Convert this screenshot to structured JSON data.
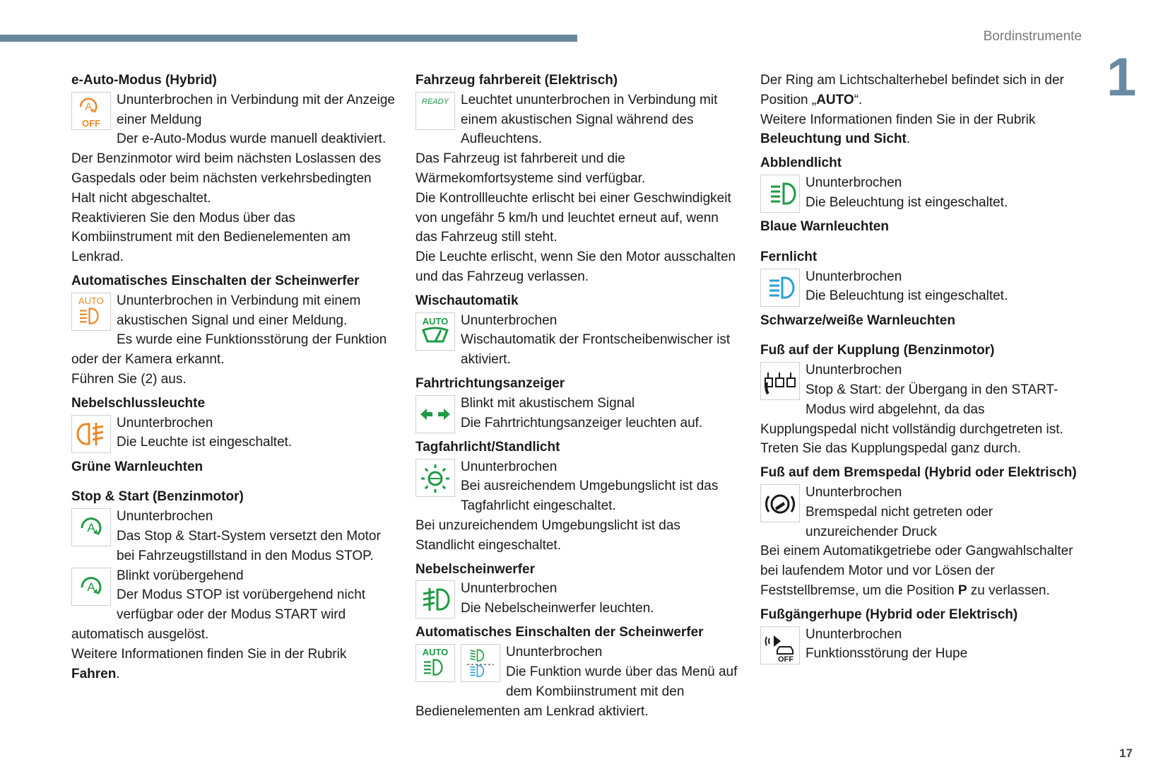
{
  "header": {
    "section_title": "Bordinstrumente",
    "chapter_number": "1",
    "page_number": "17",
    "bar_color": "#6a889c"
  },
  "colors": {
    "orange": "#e8892b",
    "green": "#1e9a45",
    "blue": "#2a9fd6",
    "black": "#1a1a1a"
  },
  "columns": [
    {
      "blocks": [
        {
          "h": "e-Auto-Modus (Hybrid)"
        },
        {
          "icons": [
            "auto-off-icon"
          ],
          "p": [
            "Ununterbrochen in Verbindung mit der Anzeige einer Meldung",
            "Der e-Auto-Modus wurde manuell deaktiviert.",
            "Der Benzinmotor wird beim nächsten Loslassen des Gaspedals oder beim nächsten verkehrsbedingten Halt nicht abgeschaltet.",
            "Reaktivieren Sie den Modus über das Kombiinstrument mit den Bedienelementen am Lenkrad."
          ]
        },
        {
          "h": "Automatisches Einschalten der Scheinwerfer"
        },
        {
          "icons": [
            "auto-headlamp-orange-icon"
          ],
          "p": [
            "Ununterbrochen in Verbindung mit einem akustischen Signal und einer Meldung.",
            "Es wurde eine Funktionsstörung der Funktion oder der Kamera erkannt.",
            "Führen Sie (2) aus."
          ]
        },
        {
          "h": "Nebelschlussleuchte"
        },
        {
          "icons": [
            "rear-fog-lamp-icon"
          ],
          "p": [
            "Ununterbrochen",
            "Die Leuchte ist eingeschaltet."
          ]
        },
        {
          "h": "Grüne Warnleuchten",
          "gap": true
        },
        {
          "h": "Stop & Start (Benzinmotor)"
        },
        {
          "icons": [
            "stop-start-icon"
          ],
          "p": [
            "Ununterbrochen",
            "Das Stop & Start-System versetzt den Motor bei Fahrzeugstillstand in den Modus STOP."
          ]
        },
        {
          "icons": [
            "stop-start-icon"
          ],
          "p": [
            "Blinkt vorübergehend",
            "Der Modus STOP ist vorübergehend nicht verfügbar oder der Modus START wird automatisch ausgelöst.",
            [
              {
                "t": "Weitere Informationen finden Sie in der Rubrik "
              },
              {
                "t": "Fahren",
                "b": true
              },
              {
                "t": "."
              }
            ]
          ]
        }
      ]
    },
    {
      "blocks": [
        {
          "h": "Fahrzeug fahrbereit (Elektrisch)"
        },
        {
          "icons": [
            "ready-icon"
          ],
          "p": [
            "Leuchtet ununterbrochen in Verbindung mit einem akustischen Signal während des Aufleuchtens.",
            "Das Fahrzeug ist fahrbereit und die Wärmekomfortsysteme sind verfügbar.",
            "Die Kontrollleuchte erlischt bei einer Geschwindigkeit von ungefähr 5 km/h und leuchtet erneut auf, wenn das Fahrzeug still steht.",
            "Die Leuchte erlischt, wenn Sie den Motor ausschalten und das Fahrzeug verlassen."
          ]
        },
        {
          "h": "Wischautomatik"
        },
        {
          "icons": [
            "auto-wiper-icon"
          ],
          "p": [
            "Ununterbrochen",
            "Wischautomatik der Frontscheibenwischer ist aktiviert."
          ]
        },
        {
          "h": "Fahrtrichtungsanzeiger"
        },
        {
          "icons": [
            "turn-signal-icon"
          ],
          "p": [
            "Blinkt mit akustischem Signal",
            "Die Fahrtrichtungsanzeiger leuchten auf."
          ]
        },
        {
          "h": "Tagfahrlicht/Standlicht"
        },
        {
          "icons": [
            "daytime-light-icon"
          ],
          "p": [
            "Ununterbrochen",
            "Bei ausreichendem Umgebungslicht ist das Tagfahrlicht eingeschaltet.",
            "Bei unzureichendem Umgebungslicht ist das Standlicht eingeschaltet."
          ]
        },
        {
          "h": "Nebelscheinwerfer"
        },
        {
          "icons": [
            "front-fog-lamp-icon"
          ],
          "p": [
            "Ununterbrochen",
            "Die Nebelscheinwerfer leuchten."
          ]
        },
        {
          "h": "Automatisches Einschalten der Scheinwerfer"
        },
        {
          "icons": [
            "auto-headlamp-green-icon",
            "auto-high-beam-icon"
          ],
          "p": [
            "Ununterbrochen",
            "Die Funktion wurde über das Menü auf dem Kombiinstrument mit den Bedienelementen am Lenkrad aktiviert."
          ]
        }
      ]
    },
    {
      "blocks": [
        {
          "p": [
            [
              {
                "t": "Der Ring am Lichtschalterhebel befindet sich in der Position „"
              },
              {
                "t": "AUTO",
                "b": true
              },
              {
                "t": "“."
              }
            ],
            [
              {
                "t": "Weitere Informationen finden Sie in der Rubrik "
              },
              {
                "t": "Beleuchtung und Sicht",
                "b": true
              },
              {
                "t": "."
              }
            ]
          ]
        },
        {
          "h": "Abblendlicht"
        },
        {
          "icons": [
            "low-beam-icon"
          ],
          "p": [
            "Ununterbrochen",
            "Die Beleuchtung ist eingeschaltet."
          ]
        },
        {
          "h": "Blaue Warnleuchten",
          "gap": true
        },
        {
          "h": "Fernlicht"
        },
        {
          "icons": [
            "high-beam-icon"
          ],
          "p": [
            "Ununterbrochen",
            "Die Beleuchtung ist eingeschaltet."
          ]
        },
        {
          "h": "Schwarze/weiße Warnleuchten",
          "gap": true
        },
        {
          "h": "Fuß auf der Kupplung (Benzinmotor)"
        },
        {
          "icons": [
            "clutch-pedal-icon"
          ],
          "p": [
            "Ununterbrochen",
            "Stop & Start: der Übergang in den START-Modus wird abgelehnt, da das Kupplungspedal nicht vollständig durchgetreten ist.",
            "Treten Sie das Kupplungspedal ganz durch."
          ]
        },
        {
          "h": "Fuß auf dem Bremspedal (Hybrid oder Elektrisch)"
        },
        {
          "icons": [
            "brake-pedal-icon"
          ],
          "p": [
            "Ununterbrochen",
            "Bremspedal nicht getreten oder unzureichender Druck",
            [
              {
                "t": "Bei einem Automatikgetriebe oder Gangwahlschalter bei laufendem Motor und vor Lösen der Feststellbremse, um die Position "
              },
              {
                "t": "P",
                "b": true
              },
              {
                "t": " zu verlassen."
              }
            ]
          ]
        },
        {
          "h": "Fußgängerhupe (Hybrid oder Elektrisch)"
        },
        {
          "icons": [
            "pedestrian-horn-off-icon"
          ],
          "p": [
            "Ununterbrochen",
            "Funktionsstörung der Hupe"
          ]
        }
      ]
    }
  ]
}
